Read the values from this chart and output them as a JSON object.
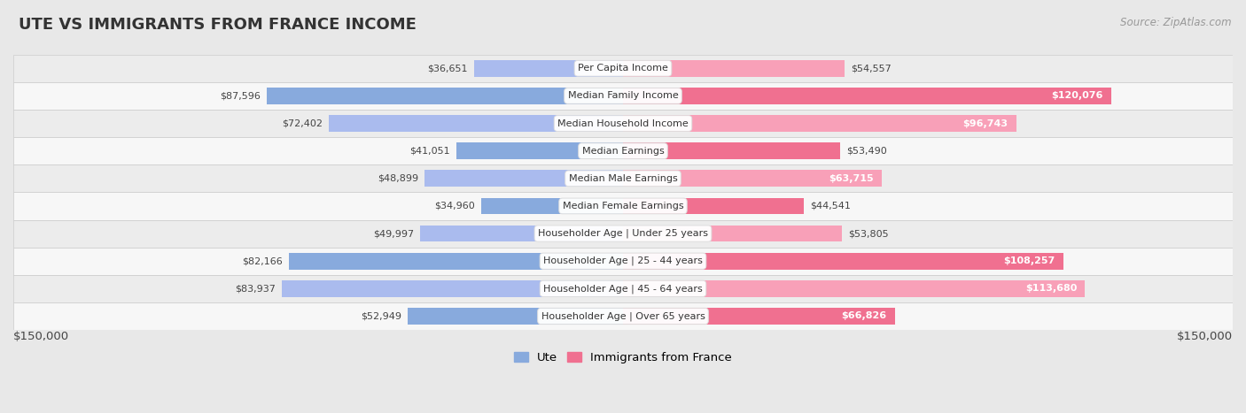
{
  "title": "UTE VS IMMIGRANTS FROM FRANCE INCOME",
  "source": "Source: ZipAtlas.com",
  "categories": [
    "Per Capita Income",
    "Median Family Income",
    "Median Household Income",
    "Median Earnings",
    "Median Male Earnings",
    "Median Female Earnings",
    "Householder Age | Under 25 years",
    "Householder Age | 25 - 44 years",
    "Householder Age | 45 - 64 years",
    "Householder Age | Over 65 years"
  ],
  "ute_values": [
    36651,
    87596,
    72402,
    41051,
    48899,
    34960,
    49997,
    82166,
    83937,
    52949
  ],
  "france_values": [
    54557,
    120076,
    96743,
    53490,
    63715,
    44541,
    53805,
    108257,
    113680,
    66826
  ],
  "ute_color": "#88AADD",
  "france_color": "#F07090",
  "ute_color_light": "#AABBEE",
  "france_color_light": "#F8A0B8",
  "max_value": 150000,
  "row_colors": [
    "#ececec",
    "#f7f7f7"
  ],
  "bg_color": "#e8e8e8",
  "legend_ute": "Ute",
  "legend_france": "Immigrants from France",
  "x_tick_label_left": "$150,000",
  "x_tick_label_right": "$150,000",
  "outside_label_color": "#444444",
  "inside_label_color": "#ffffff",
  "cat_label_fontsize": 8.0,
  "val_label_fontsize": 8.0,
  "title_fontsize": 13,
  "source_fontsize": 8.5
}
